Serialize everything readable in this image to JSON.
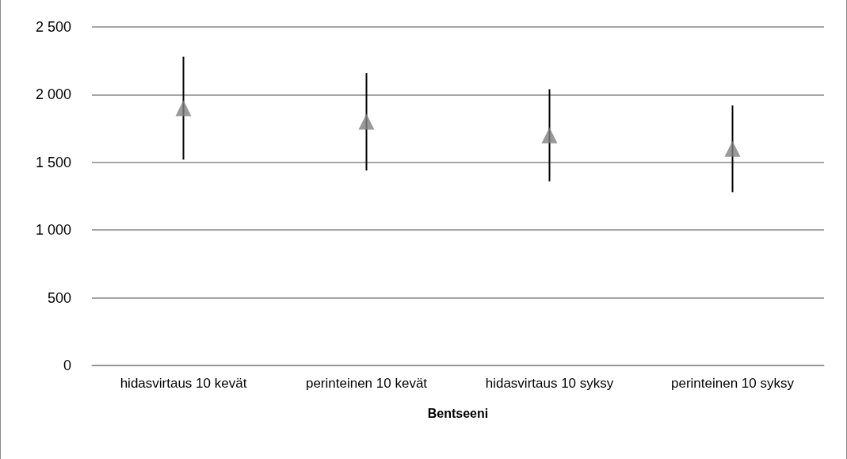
{
  "chart_data": {
    "type": "scatter",
    "xlabel": "Bentseeni",
    "categories": [
      "hidasvirtaus 10 kevät",
      "perinteinen 10 kevät",
      "hidasvirtaus 10 syksy",
      "perinteinen 10 syksy"
    ],
    "values": [
      1900,
      1800,
      1700,
      1600
    ],
    "errors": [
      [
        1520,
        2280
      ],
      [
        1440,
        2160
      ],
      [
        1360,
        2040
      ],
      [
        1280,
        1920
      ]
    ],
    "color": "#808080",
    "marker": "triangle",
    "ylim": [
      0,
      2500
    ],
    "yticks": [
      {
        "value": 0,
        "label": "0"
      },
      {
        "value": 500,
        "label": "500"
      },
      {
        "value": 1000,
        "label": "1 000"
      },
      {
        "value": 1500,
        "label": "1 500"
      },
      {
        "value": 2000,
        "label": "2 000"
      },
      {
        "value": 2500,
        "label": "2 500"
      }
    ],
    "grid": "y"
  }
}
